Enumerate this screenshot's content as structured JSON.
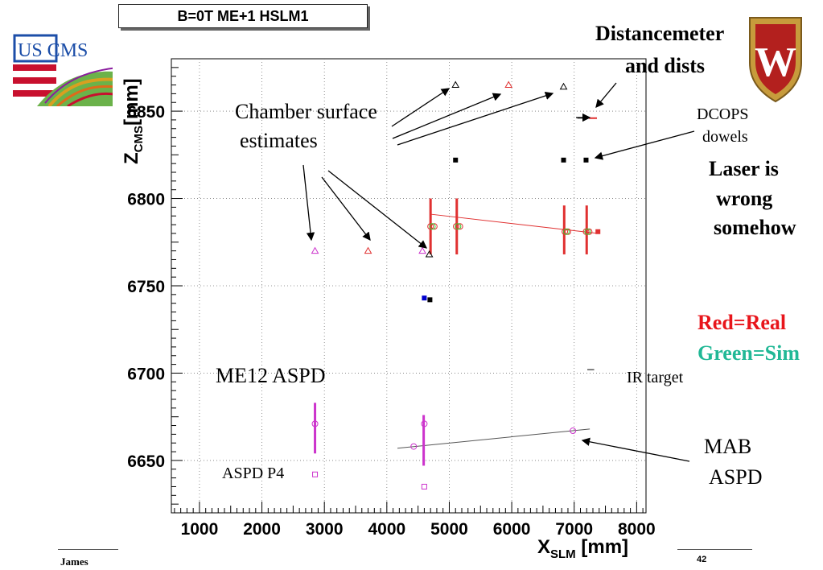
{
  "chart_data": {
    "type": "scatter",
    "title": "B=0T ME+1 HSLM1",
    "xlabel_main": "X",
    "xlabel_sub": "SLM",
    "xlabel_unit": "[mm]",
    "ylabel_main": "Z",
    "ylabel_sub": "CMS",
    "ylabel_unit": "[mm]",
    "xlim": [
      550,
      8150
    ],
    "ylim": [
      6620,
      6880
    ],
    "xticks": [
      1000,
      2000,
      3000,
      4000,
      5000,
      6000,
      7000,
      8000
    ],
    "xtick_labels": [
      "1000",
      "2000",
      "3000",
      "4000",
      "5000",
      "6000",
      "7000",
      "8000"
    ],
    "yticks": [
      6650,
      6700,
      6750,
      6800,
      6850
    ],
    "ytick_labels": [
      "6650",
      "6700",
      "6750",
      "6800",
      "6850"
    ],
    "grid": true,
    "series": [
      {
        "marker": "triangle",
        "color": "#000000",
        "points": [
          [
            5100,
            6865
          ],
          [
            6830,
            6864
          ],
          [
            4680,
            6768
          ]
        ]
      },
      {
        "marker": "triangle",
        "color": "#e03030",
        "points": [
          [
            5950,
            6865
          ],
          [
            3700,
            6770
          ]
        ]
      },
      {
        "marker": "triangle",
        "color": "#cc33cc",
        "points": [
          [
            2850,
            6770
          ],
          [
            4570,
            6770
          ]
        ]
      },
      {
        "marker": "square",
        "color": "#000000",
        "points": [
          [
            5100,
            6822
          ],
          [
            6830,
            6822
          ],
          [
            7190,
            6822
          ],
          [
            4690,
            6742
          ]
        ]
      },
      {
        "marker": "square",
        "color": "#0000cc",
        "points": [
          [
            4600,
            6743
          ]
        ]
      },
      {
        "marker": "square",
        "color": "#e03030",
        "points": [
          [
            7380,
            6781
          ]
        ]
      },
      {
        "marker": "circle",
        "color": "#e03030",
        "points": [
          [
            4700,
            6784
          ],
          [
            4760,
            6784
          ],
          [
            5110,
            6784
          ],
          [
            5170,
            6784
          ],
          [
            6850,
            6781
          ],
          [
            6900,
            6781
          ],
          [
            7190,
            6781
          ],
          [
            7240,
            6781
          ]
        ]
      },
      {
        "marker": "circle",
        "color": "#33cc33",
        "points": [
          [
            4730,
            6784
          ],
          [
            5140,
            6784
          ],
          [
            6875,
            6781
          ],
          [
            7215,
            6781
          ]
        ]
      },
      {
        "marker": "circle",
        "color": "#cc33cc",
        "points": [
          [
            2850,
            6671
          ],
          [
            4600,
            6671
          ],
          [
            4430,
            6658
          ],
          [
            6980,
            6667
          ]
        ]
      },
      {
        "marker": "open-square",
        "color": "#cc33cc",
        "points": [
          [
            2850,
            6642
          ],
          [
            4600,
            6635
          ]
        ]
      }
    ],
    "error_bars": [
      {
        "x": 4700,
        "y0": 6768,
        "y1": 6800,
        "color": "#e03030"
      },
      {
        "x": 5120,
        "y0": 6768,
        "y1": 6800,
        "color": "#e03030"
      },
      {
        "x": 6840,
        "y0": 6768,
        "y1": 6796,
        "color": "#e03030"
      },
      {
        "x": 7200,
        "y0": 6768,
        "y1": 6796,
        "color": "#e03030"
      },
      {
        "x": 2850,
        "y0": 6654,
        "y1": 6683,
        "color": "#cc33cc"
      },
      {
        "x": 4590,
        "y0": 6647,
        "y1": 6676,
        "color": "#cc33cc"
      }
    ],
    "lines": [
      {
        "x0": 4700,
        "y0": 6791,
        "x1": 7380,
        "y1": 6780,
        "color": "#e03030"
      },
      {
        "x0": 4170,
        "y0": 6657,
        "x1": 7250,
        "y1": 6668,
        "color": "#555555"
      },
      {
        "x0": 7210,
        "y0": 6702,
        "x1": 7320,
        "y1": 6702,
        "color": "#000000"
      },
      {
        "x0": 7050,
        "y0": 6846,
        "x1": 7270,
        "y1": 6846,
        "color": "#000000"
      }
    ],
    "dash_marks": [
      {
        "x": 7300,
        "y": 6846,
        "color": "#e03030"
      }
    ]
  },
  "annotations": {
    "chamber_surface": "Chamber surface",
    "chamber_estimates": "estimates",
    "distancemeter": "Distancemeter",
    "and_dists": "and dists",
    "dcops": "DCOPS",
    "dowels": "dowels",
    "laser_is": "Laser is",
    "laser_wrong": "wrong",
    "laser_somehow": "somehow",
    "red_real": "Red=Real",
    "green_sim": "Green=Sim",
    "me12_aspd": "ME12 ASPD",
    "ir_target": "IR target",
    "mab": "MAB",
    "mab_aspd": "ASPD",
    "aspd_p4": "ASPD P4"
  },
  "footer": {
    "author": "James",
    "page_number": "42"
  },
  "colors": {
    "red_real": "#e8151b",
    "green_sim": "#21b896",
    "logo_wisc": "#b3201e"
  },
  "logos": {
    "us_cms": "US CMS",
    "wisc_letter": "W"
  }
}
